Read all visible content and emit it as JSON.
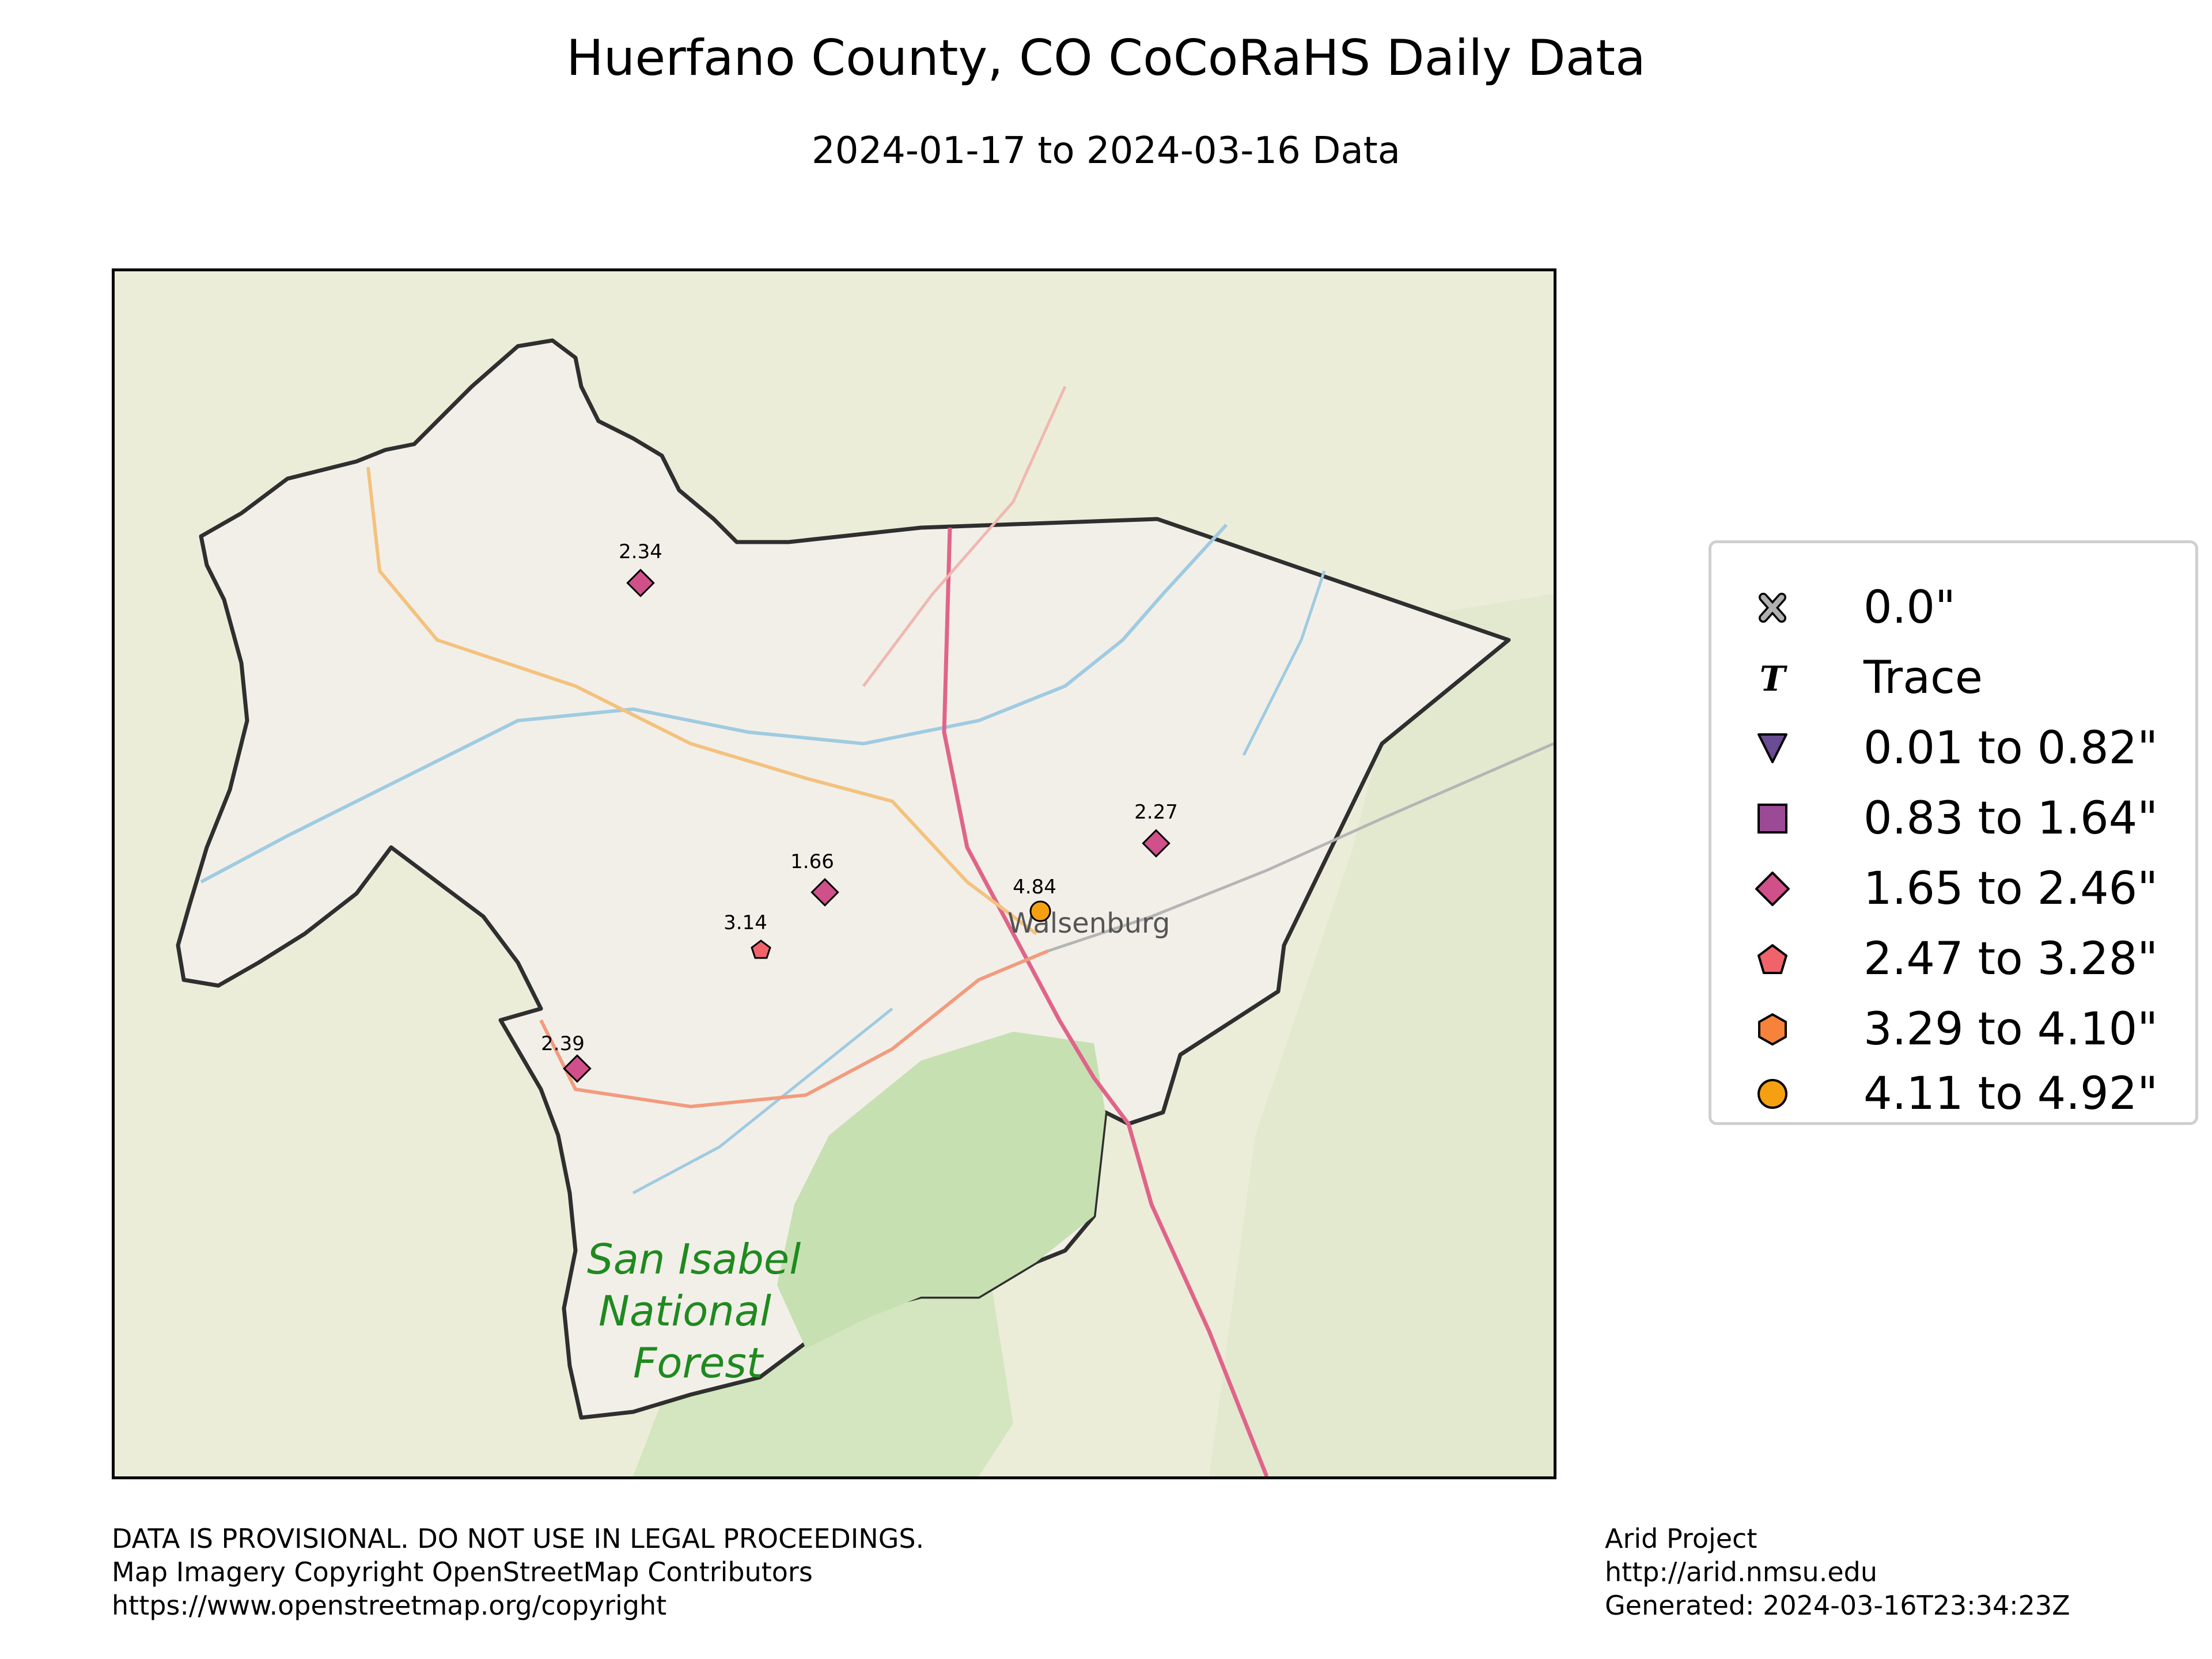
{
  "title": "Huerfano County, CO CoCoRaHS Daily Data",
  "subtitle": "2024-01-17 to 2024-03-16 Data",
  "map": {
    "place_labels": {
      "city": "Walsenburg",
      "forest_lines": [
        "San Isabel",
        "National",
        "Forest"
      ]
    },
    "stations": [
      {
        "value": "2.34",
        "symbol": "diamond",
        "color": "#d0508a"
      },
      {
        "value": "2.27",
        "symbol": "diamond",
        "color": "#d0508a"
      },
      {
        "value": "1.66",
        "symbol": "diamond",
        "color": "#d0508a"
      },
      {
        "value": "4.84",
        "symbol": "circle",
        "color": "#f5a011"
      },
      {
        "value": "3.14",
        "symbol": "pentagon",
        "color": "#f0636a"
      },
      {
        "value": "2.39",
        "symbol": "diamond",
        "color": "#d0508a"
      }
    ]
  },
  "legend": {
    "items": [
      {
        "label": "0.0\"",
        "symbol": "x-icon",
        "color": "#b0b0b0"
      },
      {
        "label": "Trace",
        "symbol": "t-icon",
        "color": "#000000"
      },
      {
        "label": "0.01 to 0.82\"",
        "symbol": "triangle-down",
        "color": "#6a4c93"
      },
      {
        "label": "0.83 to 1.64\"",
        "symbol": "square",
        "color": "#9b4a96"
      },
      {
        "label": "1.65 to 2.46\"",
        "symbol": "diamond",
        "color": "#d0508a"
      },
      {
        "label": "2.47 to 3.28\"",
        "symbol": "pentagon",
        "color": "#f0636a"
      },
      {
        "label": "3.29 to 4.10\"",
        "symbol": "hexagon",
        "color": "#f7833a"
      },
      {
        "label": "4.11 to 4.92\"",
        "symbol": "circle",
        "color": "#f5a011"
      }
    ]
  },
  "footer": {
    "left": [
      "DATA IS PROVISIONAL. DO NOT USE IN LEGAL PROCEEDINGS.",
      "Map Imagery Copyright OpenStreetMap Contributors",
      "https://www.openstreetmap.org/copyright"
    ],
    "right": [
      "Arid Project",
      "http://arid.nmsu.edu",
      "Generated: 2024-03-16T23:34:23Z"
    ]
  }
}
